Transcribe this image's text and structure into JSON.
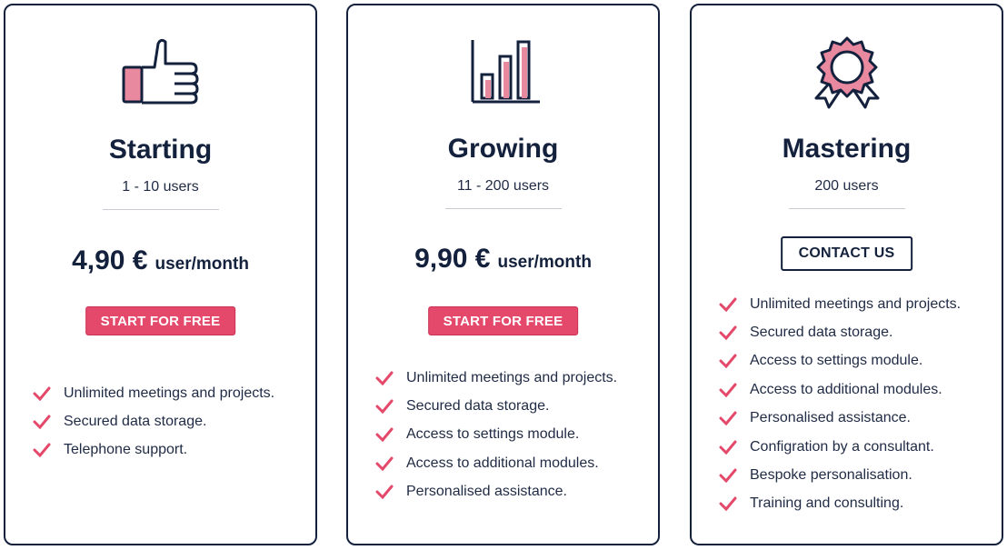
{
  "plans": [
    {
      "icon": "thumbs-up-icon",
      "title": "Starting",
      "users": "1 - 10 users",
      "price": "4,90 €",
      "price_unit": "user/month",
      "cta": "START FOR FREE",
      "features": [
        "Unlimited meetings and projects.",
        "Secured data storage.",
        "Telephone support."
      ]
    },
    {
      "icon": "bar-chart-icon",
      "title": "Growing",
      "users": "11 - 200 users",
      "price": "9,90 €",
      "price_unit": "user/month",
      "cta": "START FOR FREE",
      "features": [
        "Unlimited meetings and projects.",
        "Secured data storage.",
        "Access to settings module.",
        "Access to additional modules.",
        "Personalised assistance."
      ]
    },
    {
      "icon": "award-badge-icon",
      "title": "Mastering",
      "users": "200 users",
      "cta": "CONTACT US",
      "features": [
        "Unlimited meetings and projects.",
        "Secured data storage.",
        "Access to settings module.",
        "Access to additional modules.",
        "Personalised assistance.",
        "Configration by a consultant.",
        "Bespoke personalisation.",
        "Training and consulting."
      ]
    }
  ],
  "colors": {
    "accent": "#e4486a",
    "navy": "#14213d",
    "divider": "#c9ccd3",
    "text": "#1f2a44"
  }
}
